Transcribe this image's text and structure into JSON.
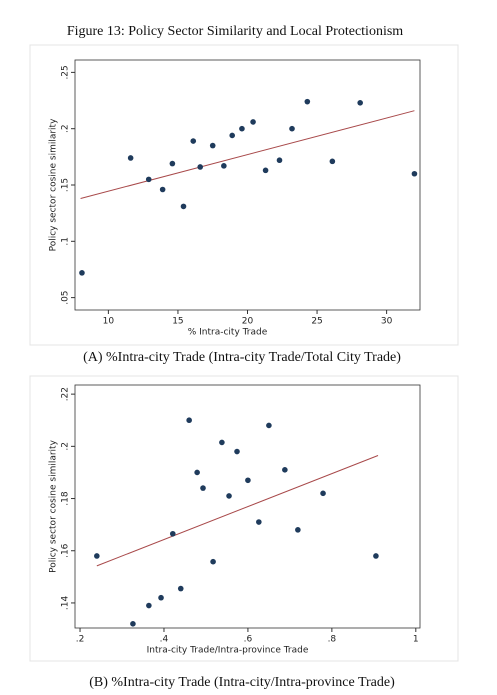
{
  "figure_title": "Figure 13: Policy Sector Similarity and Local Protectionism",
  "chart_data": [
    {
      "type": "scatter",
      "caption": "(A) %Intra-city Trade (Intra-city Trade/Total City Trade)",
      "x_label": "% Intra-city Trade",
      "y_label": "Policy sector cosine similarity",
      "x": [
        8.1,
        11.6,
        12.9,
        13.9,
        14.6,
        15.4,
        16.1,
        16.6,
        17.5,
        18.3,
        18.9,
        19.6,
        20.4,
        21.3,
        22.3,
        23.2,
        24.3,
        26.1,
        28.1,
        32
      ],
      "values": [
        0.072,
        0.174,
        0.155,
        0.146,
        0.169,
        0.131,
        0.189,
        0.166,
        0.185,
        0.167,
        0.194,
        0.2,
        0.206,
        0.163,
        0.172,
        0.2,
        0.224,
        0.171,
        0.223,
        0.16
      ],
      "color": "#1f3b5c",
      "fit_line": {
        "x": [
          8,
          32
        ],
        "values": [
          0.138,
          0.216
        ],
        "color": "#a8494a"
      },
      "xlim": [
        7.6,
        32.4
      ],
      "xticks": [
        10,
        15,
        20,
        25,
        30
      ],
      "ylim": [
        0.039,
        0.261
      ],
      "yticks": [
        {
          "value": 0.05,
          "label": ".05"
        },
        {
          "value": 0.1,
          "label": ".1"
        },
        {
          "value": 0.15,
          "label": ".15"
        },
        {
          "value": 0.2,
          "label": ".2"
        },
        {
          "value": 0.25,
          "label": ".25"
        }
      ]
    },
    {
      "type": "scatter",
      "caption": "(B) %Intra-city Trade (Intra-city/Intra-province Trade)",
      "x_label": "Intra-city Trade/Intra-province Trade",
      "y_label": "Policy sector cosine similarity",
      "x": [
        0.24,
        0.326,
        0.364,
        0.393,
        0.421,
        0.44,
        0.46,
        0.479,
        0.493,
        0.517,
        0.538,
        0.555,
        0.574,
        0.6,
        0.626,
        0.65,
        0.688,
        0.719,
        0.779,
        0.905
      ],
      "values": [
        0.158,
        0.132,
        0.139,
        0.142,
        0.1665,
        0.1455,
        0.21,
        0.19,
        0.184,
        0.1558,
        0.2015,
        0.181,
        0.198,
        0.187,
        0.171,
        0.208,
        0.191,
        0.168,
        0.182,
        0.158
      ],
      "color": "#1f3b5c",
      "fit_line": {
        "x": [
          0.24,
          0.91
        ],
        "values": [
          0.1542,
          0.1965
        ],
        "color": "#a8494a"
      },
      "xlim": [
        0.188,
        1.01
      ],
      "xticks": [
        {
          "value": 0.2,
          "label": ".2"
        },
        {
          "value": 0.4,
          "label": ".4"
        },
        {
          "value": 0.6,
          "label": ".6"
        },
        {
          "value": 0.8,
          "label": ".8"
        },
        1
      ],
      "ylim": [
        0.1304,
        0.2235
      ],
      "yticks": [
        {
          "value": 0.14,
          "label": ".14"
        },
        {
          "value": 0.16,
          "label": ".16"
        },
        {
          "value": 0.18,
          "label": ".18"
        },
        {
          "value": 0.2,
          "label": ".2"
        },
        {
          "value": 0.22,
          "label": ".22"
        }
      ]
    }
  ]
}
